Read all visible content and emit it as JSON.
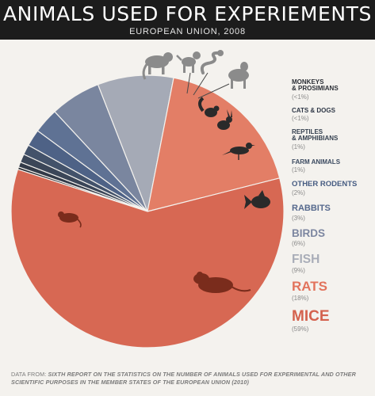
{
  "header": {
    "title": "ANIMALS USED FOR EXPERIEMENTS",
    "subtitle": "EUROPEAN UNION, 2008"
  },
  "chart_data": {
    "type": "pie",
    "title": "ANIMALS USED FOR EXPERIEMENTS",
    "subtitle": "EUROPEAN UNION, 2008",
    "legend_position": "right",
    "series": [
      {
        "name": "MONKEYS\n& PROSIMIANS",
        "pct_label": "(<1%)",
        "value": 0.3,
        "color": "#2b2f36",
        "legend_color": "#2b2f36",
        "icon": "monkey-icon"
      },
      {
        "name": "CATS & DOGS",
        "pct_label": "(<1%)",
        "value": 0.6,
        "color": "#323a48",
        "legend_color": "#2f3847",
        "icon": "dog-icon"
      },
      {
        "name": "REPTILES\n& AMPHIBIANS",
        "pct_label": "(1%)",
        "value": 1,
        "color": "#3b4658",
        "legend_color": "#34404f",
        "icon": "snake-icon"
      },
      {
        "name": "FARM ANIMALS",
        "pct_label": "(1%)",
        "value": 1.2,
        "color": "#43526a",
        "legend_color": "#3b4a60",
        "icon": "sheep-icon"
      },
      {
        "name": "OTHER RODENTS",
        "pct_label": "(2%)",
        "value": 2,
        "color": "#4e6286",
        "legend_color": "#465c82",
        "icon": "squirrel-icon"
      },
      {
        "name": "RABBITS",
        "pct_label": "(3%)",
        "value": 3,
        "color": "#5f7294",
        "legend_color": "#56698d",
        "icon": "rabbit-icon"
      },
      {
        "name": "BIRDS",
        "pct_label": "(6%)",
        "value": 6,
        "color": "#7a869f",
        "legend_color": "#7c86a0",
        "icon": "bird-icon"
      },
      {
        "name": "FISH",
        "pct_label": "(9%)",
        "value": 9,
        "color": "#a5aab6",
        "legend_color": "#a9adb8",
        "icon": "fish-icon"
      },
      {
        "name": "RATS",
        "pct_label": "(18%)",
        "value": 18,
        "color": "#e37e66",
        "legend_color": "#e2735c",
        "icon": "rat-icon"
      },
      {
        "name": "MICE",
        "pct_label": "(59%)",
        "value": 59,
        "color": "#d76853",
        "legend_color": "#d4624e",
        "icon": "mouse-icon"
      }
    ]
  },
  "footer": {
    "prefix": "DATA FROM: ",
    "source": "SIXTH REPORT ON THE STATISTICS ON THE NUMBER OF ANIMALS USED FOR EXPERIMENTAL AND OTHER SCIENTIFIC PURPOSES IN THE MEMBER STATES OF THE EUROPEAN UNION (2010)"
  }
}
